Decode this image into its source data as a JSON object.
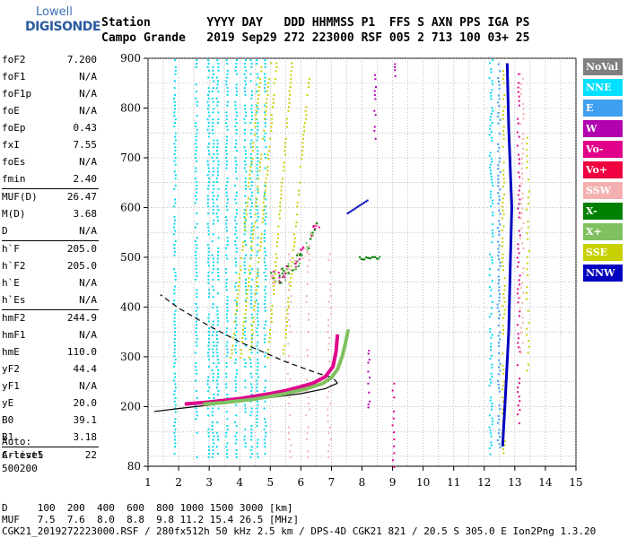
{
  "logo": {
    "line1": "Lowell",
    "line2": "DIGISONDE"
  },
  "header": {
    "line1": "Station        YYYY DAY   DDD HHMMSS P1  FFS S AXN PPS IGA PS",
    "line2": "Campo Grande   2019 Sep29 272 223000 RSF 005 2 713 100 03+ 25"
  },
  "params": [
    [
      [
        "foF2",
        "7.200"
      ],
      [
        "foF1",
        "N/A"
      ],
      [
        "foF1p",
        "N/A"
      ],
      [
        "foE",
        "N/A"
      ],
      [
        "foEp",
        "0.43"
      ],
      [
        "fxI",
        "7.55"
      ],
      [
        "foEs",
        "N/A"
      ],
      [
        "fmin",
        "2.40"
      ]
    ],
    [
      [
        "MUF(D)",
        "26.47"
      ],
      [
        "M(D)",
        "3.68"
      ],
      [
        "D",
        "N/A"
      ]
    ],
    [
      [
        "h`F",
        "205.0"
      ],
      [
        "h`F2",
        "205.0"
      ],
      [
        "h`E",
        "N/A"
      ],
      [
        "h`Es",
        "N/A"
      ]
    ],
    [
      [
        "hmF2",
        "244.9"
      ],
      [
        "hmF1",
        "N/A"
      ],
      [
        "hmE",
        "110.0"
      ],
      [
        "yF2",
        "44.4"
      ],
      [
        "yF1",
        "N/A"
      ],
      [
        "yE",
        "20.0"
      ],
      [
        "B0",
        "39.1"
      ],
      [
        "B1",
        "3.18"
      ]
    ],
    [
      [
        "C-level",
        "22"
      ]
    ]
  ],
  "auto": {
    "line1": "Auto:",
    "line2": "Artist5",
    "line3": "500200"
  },
  "legend": [
    {
      "label": "NoVal",
      "color": "#808080"
    },
    {
      "label": "NNE",
      "color": "#00e0ff"
    },
    {
      "label": "E",
      "color": "#40a0f0"
    },
    {
      "label": "W",
      "color": "#b000b0"
    },
    {
      "label": "Vo-",
      "color": "#e0008a"
    },
    {
      "label": "Vo+",
      "color": "#f00040"
    },
    {
      "label": "SSW",
      "color": "#f4b0b0"
    },
    {
      "label": "X-",
      "color": "#008000"
    },
    {
      "label": "X+",
      "color": "#80c060"
    },
    {
      "label": "SSE",
      "color": "#c8d000"
    },
    {
      "label": "NNW",
      "color": "#0000c0"
    }
  ],
  "footer": {
    "line1": "D     100  200  400  600  800 1000 1500 3000 [km]",
    "line2": "MUF   7.5  7.6  8.0  8.8  9.8 11.2 15.4 26.5 [MHz]",
    "line3": "CGK21_2019272223000.RSF / 280fx512h 50 kHz 2.5 km / DPS-4D CGK21 821 / 20.5 S 305.0 E Ion2Png 1.3.20"
  },
  "chart_data": {
    "type": "scatter",
    "title": "",
    "xlabel": "",
    "ylabel": "",
    "xlim": [
      1,
      15
    ],
    "ylim": [
      80,
      900
    ],
    "x_ticks": [
      1,
      2,
      3,
      4,
      5,
      6,
      7,
      8,
      9,
      10,
      11,
      12,
      13,
      14,
      15
    ],
    "y_ticks": [
      80,
      200,
      300,
      400,
      500,
      600,
      700,
      800,
      900
    ],
    "grid": true,
    "series": [
      {
        "name": "Vo-",
        "color": "#e0008a",
        "x": [
          2.2,
          3.0,
          4.0,
          5.0,
          5.5,
          6.0,
          6.4,
          6.8,
          7.05,
          7.15,
          7.2
        ],
        "y": [
          205,
          209,
          216,
          226,
          232,
          240,
          247,
          260,
          280,
          310,
          345
        ]
      },
      {
        "name": "X+",
        "color": "#80c060",
        "x": [
          2.8,
          3.5,
          4.5,
          5.5,
          6.2,
          6.7,
          7.0,
          7.2,
          7.35,
          7.45,
          7.55
        ],
        "y": [
          205,
          208,
          215,
          226,
          236,
          246,
          258,
          275,
          300,
          325,
          355
        ]
      },
      {
        "name": "NNW",
        "color": "#0000c0",
        "x": [
          12.6,
          12.7,
          12.8,
          12.85,
          12.9,
          12.8,
          12.75
        ],
        "y": [
          120,
          230,
          350,
          480,
          600,
          760,
          890
        ]
      }
    ],
    "model_profile": {
      "x": [
        1.2,
        2,
        3,
        4,
        5,
        6,
        6.8,
        7.2,
        7.05,
        6.6,
        5.5,
        4,
        3,
        2,
        1.4
      ],
      "y": [
        190,
        196,
        203,
        211,
        218,
        226,
        236,
        247,
        258,
        266,
        290,
        330,
        362,
        398,
        425
      ]
    }
  }
}
